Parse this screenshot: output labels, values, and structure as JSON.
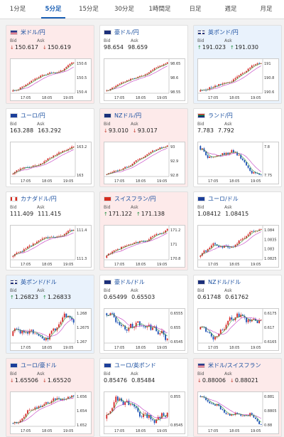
{
  "timeframes": [
    "1分足",
    "5分足",
    "15分足",
    "30分足",
    "1時間足",
    "日足",
    "週足",
    "月足"
  ],
  "active_tab": 1,
  "bid_label": "Bid",
  "ask_label": "Ask",
  "x_ticks": [
    "17:05",
    "18:05",
    "19:05"
  ],
  "colors": {
    "up": "#d62828",
    "down": "#1a4fb4",
    "ma": "#c23cc2",
    "ma2": "#3a9a3a"
  },
  "pairs": [
    {
      "name": "米ドル/円",
      "flag": "us",
      "state": "down",
      "bid": "150.617",
      "ask": "150.619",
      "bid_dir": "down",
      "ask_dir": "down",
      "y_ticks": [
        "150.6",
        "150.5",
        "150.4"
      ],
      "trend": 0.8,
      "wave": 0.15
    },
    {
      "name": "豪ドル/円",
      "flag": "au",
      "state": "flat",
      "bid": "98.654",
      "ask": "98.659",
      "bid_dir": "none",
      "ask_dir": "none",
      "y_ticks": [
        "98.65",
        "98.6",
        "98.55"
      ],
      "trend": 0.75,
      "wave": 0.12
    },
    {
      "name": "英ポンド/円",
      "flag": "gb",
      "state": "up",
      "bid": "191.023",
      "ask": "191.030",
      "bid_dir": "up",
      "ask_dir": "up",
      "y_ticks": [
        "191",
        "190.8",
        "190.6"
      ],
      "trend": 0.7,
      "wave": 0.15
    },
    {
      "name": "ユーロ/円",
      "flag": "eu",
      "state": "flat",
      "bid": "163.288",
      "ask": "163.292",
      "bid_dir": "none",
      "ask_dir": "none",
      "y_ticks": [
        "163.2",
        "163"
      ],
      "trend": 0.8,
      "wave": 0.1
    },
    {
      "name": "NZドル/円",
      "flag": "nz",
      "state": "down",
      "bid": "93.010",
      "ask": "93.017",
      "bid_dir": "down",
      "ask_dir": "down",
      "y_ticks": [
        "93",
        "92.9",
        "92.8"
      ],
      "trend": 0.75,
      "wave": 0.15
    },
    {
      "name": "ランド/円",
      "flag": "za",
      "state": "flat",
      "bid": "7.783",
      "ask": "7.792",
      "bid_dir": "none",
      "ask_dir": "none",
      "y_ticks": [
        "7.8",
        "7.75"
      ],
      "trend": -0.3,
      "wave": 0.35
    },
    {
      "name": "カナダドル/円",
      "flag": "ca",
      "state": "flat",
      "bid": "111.409",
      "ask": "111.415",
      "bid_dir": "none",
      "ask_dir": "none",
      "y_ticks": [
        "111.4",
        "111.3"
      ],
      "trend": 0.7,
      "wave": 0.15
    },
    {
      "name": "スイスフラン/円",
      "flag": "ch",
      "state": "down",
      "bid": "171.122",
      "ask": "171.138",
      "bid_dir": "up",
      "ask_dir": "up",
      "y_ticks": [
        "171.2",
        "171",
        "170.8"
      ],
      "trend": 0.75,
      "wave": 0.15
    },
    {
      "name": "ユーロ/ドル",
      "flag": "eu",
      "state": "flat",
      "bid": "1.08412",
      "ask": "1.08415",
      "bid_dir": "none",
      "ask_dir": "none",
      "y_ticks": [
        "1.084",
        "1.0835",
        "1.083",
        "1.0825"
      ],
      "trend": 0.6,
      "wave": 0.2
    },
    {
      "name": "英ポンド/ドル",
      "flag": "gb",
      "state": "up",
      "bid": "1.26823",
      "ask": "1.26833",
      "bid_dir": "up",
      "ask_dir": "up",
      "y_ticks": [
        "1.268",
        "1.2675",
        "1.267"
      ],
      "trend": 0.4,
      "wave": 0.3
    },
    {
      "name": "豪ドル/ドル",
      "flag": "au",
      "state": "flat",
      "bid": "0.65499",
      "ask": "0.65503",
      "bid_dir": "none",
      "ask_dir": "none",
      "y_ticks": [
        "0.6555",
        "0.655",
        "0.6545"
      ],
      "trend": -0.4,
      "wave": 0.3
    },
    {
      "name": "NZドル/ドル",
      "flag": "nz",
      "state": "flat",
      "bid": "0.61748",
      "ask": "0.61762",
      "bid_dir": "none",
      "ask_dir": "none",
      "y_ticks": [
        "0.6175",
        "0.617",
        "0.6165"
      ],
      "trend": 0.1,
      "wave": 0.35
    },
    {
      "name": "ユーロ/豪ドル",
      "flag": "eu",
      "state": "down",
      "bid": "1.65506",
      "ask": "1.65520",
      "bid_dir": "down",
      "ask_dir": "down",
      "y_ticks": [
        "1.656",
        "1.654",
        "1.652"
      ],
      "trend": 0.6,
      "wave": 0.2
    },
    {
      "name": "ユーロ/英ポンド",
      "flag": "eu",
      "state": "flat",
      "bid": "0.85476",
      "ask": "0.85484",
      "bid_dir": "none",
      "ask_dir": "none",
      "y_ticks": [
        "0.855",
        "0.8545"
      ],
      "trend": 0.0,
      "wave": 0.35
    },
    {
      "name": "米ドル/スイスフラン",
      "flag": "us",
      "state": "down",
      "bid": "0.88006",
      "ask": "0.88021",
      "bid_dir": "down",
      "ask_dir": "down",
      "y_ticks": [
        "0.881",
        "0.8805",
        "0.88"
      ],
      "trend": -0.2,
      "wave": 0.4
    }
  ]
}
